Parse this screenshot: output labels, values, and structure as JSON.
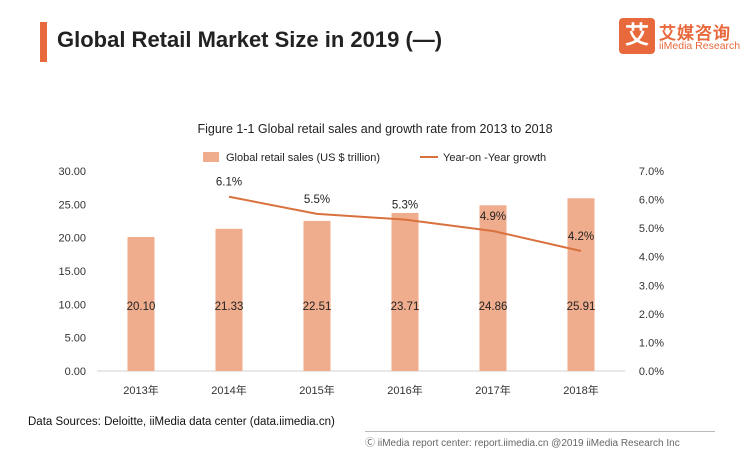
{
  "header": {
    "title": "Global Retail Market Size in 2019 (—)",
    "brand_logo_glyph": "艾",
    "brand_name": "艾媒咨询",
    "brand_sub": "iiMedia Research"
  },
  "source_text": "Data Sources: Deloitte, iiMedia data center (data.iimedia.cn)",
  "footer_text": "Ⓒ iiMedia report center: report.iimedia.cn  @2019 iiMedia Research Inc",
  "colors": {
    "accent": "#e8693c",
    "bar": "#f0ad8e",
    "line": "#d9713e"
  },
  "chart_data": {
    "type": "bar",
    "title": "Figure 1-1 Global retail sales and growth rate from 2013 to 2018",
    "categories": [
      "2013年",
      "2014年",
      "2015年",
      "2016年",
      "2017年",
      "2018年"
    ],
    "series": [
      {
        "name": "Global retail sales (US $ trillion)",
        "type": "bar",
        "axis": "left",
        "values": [
          20.1,
          21.33,
          22.51,
          23.71,
          24.86,
          25.91
        ],
        "labels": [
          "20.10",
          "21.33",
          "22.51",
          "23.71",
          "24.86",
          "25.91"
        ]
      },
      {
        "name": "Year-on -Year growth",
        "type": "line",
        "axis": "right",
        "values": [
          null,
          6.1,
          5.5,
          5.3,
          4.9,
          4.2
        ],
        "labels": [
          "",
          "6.1%",
          "5.5%",
          "5.3%",
          "4.9%",
          "4.2%"
        ]
      }
    ],
    "ylim_left": [
      0,
      30
    ],
    "yticks_left": [
      "0.00",
      "5.00",
      "10.00",
      "15.00",
      "20.00",
      "25.00",
      "30.00"
    ],
    "ylim_right": [
      0,
      7
    ],
    "yticks_right": [
      "0.0%",
      "1.0%",
      "2.0%",
      "3.0%",
      "4.0%",
      "5.0%",
      "6.0%",
      "7.0%"
    ],
    "legend_position": "top-center",
    "grid": false
  }
}
